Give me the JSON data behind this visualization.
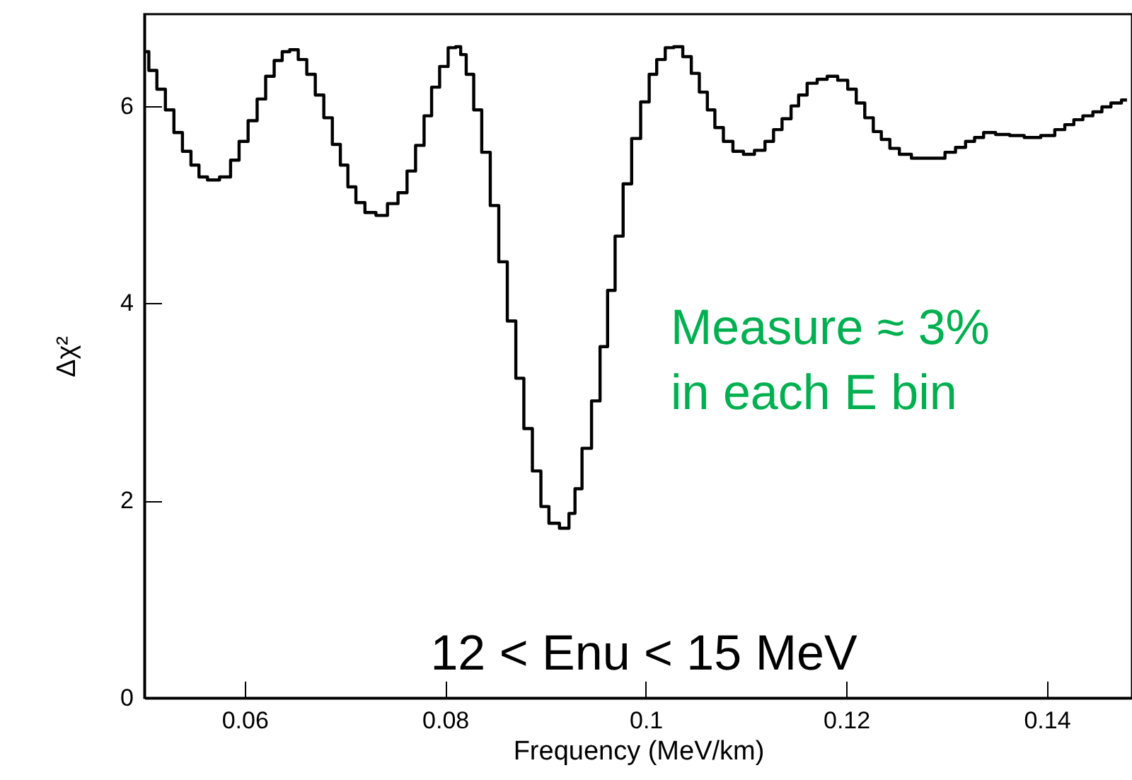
{
  "chart_data": {
    "type": "step",
    "xlabel": "Frequency (MeV/km)",
    "ylabel": "Δχ²",
    "annotations": [
      "Measure ≈ 3%\nin each E bin",
      "12 < Enu < 15 MeV"
    ],
    "x": [
      0.0501,
      0.0508,
      0.0517,
      0.0525,
      0.0534,
      0.0542,
      0.0551,
      0.0558,
      0.0568,
      0.0582,
      0.059,
      0.0599,
      0.0608,
      0.0617,
      0.0625,
      0.0634,
      0.0641,
      0.0649,
      0.0658,
      0.0666,
      0.0675,
      0.0683,
      0.0692,
      0.0699,
      0.0707,
      0.0715,
      0.0725,
      0.0737,
      0.0748,
      0.0758,
      0.0766,
      0.0775,
      0.0783,
      0.079,
      0.0799,
      0.0807,
      0.0814,
      0.0817,
      0.0825,
      0.0832,
      0.0841,
      0.0849,
      0.0858,
      0.0866,
      0.0875,
      0.0882,
      0.0892,
      0.0899,
      0.0908,
      0.092,
      0.0927,
      0.0932,
      0.0941,
      0.0951,
      0.0958,
      0.0966,
      0.0973,
      0.0982,
      0.099,
      0.1,
      0.1007,
      0.1015,
      0.1024,
      0.1032,
      0.1042,
      0.1049,
      0.1058,
      0.1065,
      0.1073,
      0.1082,
      0.1092,
      0.1103,
      0.1114,
      0.1124,
      0.1131,
      0.1141,
      0.1149,
      0.1156,
      0.1166,
      0.1176,
      0.1186,
      0.1197,
      0.1206,
      0.1214,
      0.1223,
      0.1231,
      0.1239,
      0.1248,
      0.1258,
      0.1272,
      0.1293,
      0.1304,
      0.1314,
      0.1324,
      0.1332,
      0.1342,
      0.1356,
      0.137,
      0.1385,
      0.1403,
      0.1413,
      0.1423,
      0.1431,
      0.1441,
      0.1451,
      0.1459,
      0.1469,
      0.148
    ],
    "series": [
      {
        "color": "#000000",
        "values": [
          6.55,
          6.36,
          6.17,
          5.96,
          5.73,
          5.54,
          5.4,
          5.28,
          5.25,
          5.28,
          5.45,
          5.64,
          5.85,
          6.07,
          6.3,
          6.46,
          6.55,
          6.57,
          6.47,
          6.32,
          6.11,
          5.88,
          5.61,
          5.4,
          5.18,
          5.02,
          4.92,
          4.89,
          5.01,
          5.12,
          5.34,
          5.6,
          5.9,
          6.19,
          6.4,
          6.59,
          6.6,
          6.52,
          6.32,
          5.96,
          5.53,
          4.99,
          4.42,
          3.82,
          3.24,
          2.73,
          2.3,
          1.94,
          1.77,
          1.72,
          1.87,
          2.12,
          2.53,
          3.01,
          3.56,
          4.13,
          4.68,
          5.21,
          5.67,
          6.04,
          6.32,
          6.47,
          6.59,
          6.6,
          6.5,
          6.33,
          6.14,
          5.96,
          5.78,
          5.64,
          5.54,
          5.51,
          5.55,
          5.64,
          5.76,
          5.87,
          6.0,
          6.11,
          6.23,
          6.27,
          6.3,
          6.26,
          6.17,
          6.03,
          5.88,
          5.74,
          5.66,
          5.57,
          5.51,
          5.47,
          5.47,
          5.53,
          5.58,
          5.64,
          5.68,
          5.73,
          5.71,
          5.7,
          5.68,
          5.7,
          5.76,
          5.81,
          5.86,
          5.9,
          5.94,
          5.99,
          6.03,
          6.06
        ]
      }
    ],
    "xlim": [
      0.05,
      0.1485
    ],
    "xticks": [
      {
        "value": 0.06,
        "label": "0.06"
      },
      {
        "value": 0.08,
        "label": "0.08"
      },
      {
        "value": 0.1,
        "label": "0.1"
      },
      {
        "value": 0.12,
        "label": "0.12"
      },
      {
        "value": 0.14,
        "label": "0.14"
      }
    ],
    "ylim": [
      0,
      6.93
    ],
    "yticks": [
      0,
      2,
      4,
      6
    ],
    "grid": false,
    "line_style": "solid"
  }
}
